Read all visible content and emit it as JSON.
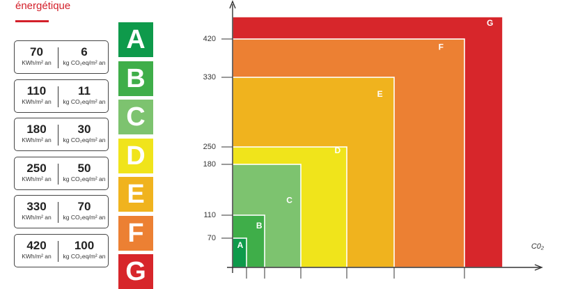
{
  "title_fragment": "énergétique",
  "value_boxes": [
    {
      "energy": "70",
      "energy_unit": "KWh/m² an",
      "co2": "6",
      "co2_unit": "kg CO₂eq/m² an"
    },
    {
      "energy": "110",
      "energy_unit": "KWh/m² an",
      "co2": "11",
      "co2_unit": "kg CO₂eq/m² an"
    },
    {
      "energy": "180",
      "energy_unit": "KWh/m² an",
      "co2": "30",
      "co2_unit": "kg CO₂eq/m² an"
    },
    {
      "energy": "250",
      "energy_unit": "KWh/m² an",
      "co2": "50",
      "co2_unit": "kg CO₂eq/m² an"
    },
    {
      "energy": "330",
      "energy_unit": "KWh/m² an",
      "co2": "70",
      "co2_unit": "kg CO₂eq/m² an"
    },
    {
      "energy": "420",
      "energy_unit": "KWh/m² an",
      "co2": "100",
      "co2_unit": "kg CO₂eq/m² an"
    }
  ],
  "classes": [
    {
      "letter": "A",
      "color": "#0e9a4b",
      "energy_max": 70,
      "co2_max": 6
    },
    {
      "letter": "B",
      "color": "#3fae49",
      "energy_max": 110,
      "co2_max": 11
    },
    {
      "letter": "C",
      "color": "#7dc36f",
      "energy_max": 180,
      "co2_max": 30
    },
    {
      "letter": "D",
      "color": "#f0e41b",
      "energy_max": 250,
      "co2_max": 50
    },
    {
      "letter": "E",
      "color": "#f0b31e",
      "energy_max": 330,
      "co2_max": 70
    },
    {
      "letter": "F",
      "color": "#ec8033",
      "energy_max": 420,
      "co2_max": 100
    },
    {
      "letter": "G",
      "color": "#d7262b",
      "energy_max": null,
      "co2_max": null
    }
  ],
  "chart_data": {
    "type": "area",
    "title": "",
    "xlabel": "C0₂",
    "ylabel": "",
    "y_ticks": [
      70,
      110,
      180,
      250,
      330,
      420
    ],
    "x_ticks": [
      6,
      11,
      30,
      50,
      70,
      100
    ],
    "x_tick_labels_shown": false,
    "regions": [
      {
        "label": "G",
        "x_max": 145,
        "y_max": 470
      },
      {
        "label": "F",
        "x_max": 100,
        "y_max": 420
      },
      {
        "label": "E",
        "x_max": 70,
        "y_max": 330
      },
      {
        "label": "D",
        "x_max": 50,
        "y_max": 250
      },
      {
        "label": "C",
        "x_max": 30,
        "y_max": 180
      },
      {
        "label": "B",
        "x_max": 11,
        "y_max": 110
      },
      {
        "label": "A",
        "x_max": 6,
        "y_max": 70
      }
    ],
    "xlim": [
      0,
      145
    ],
    "ylim": [
      0,
      470
    ]
  }
}
